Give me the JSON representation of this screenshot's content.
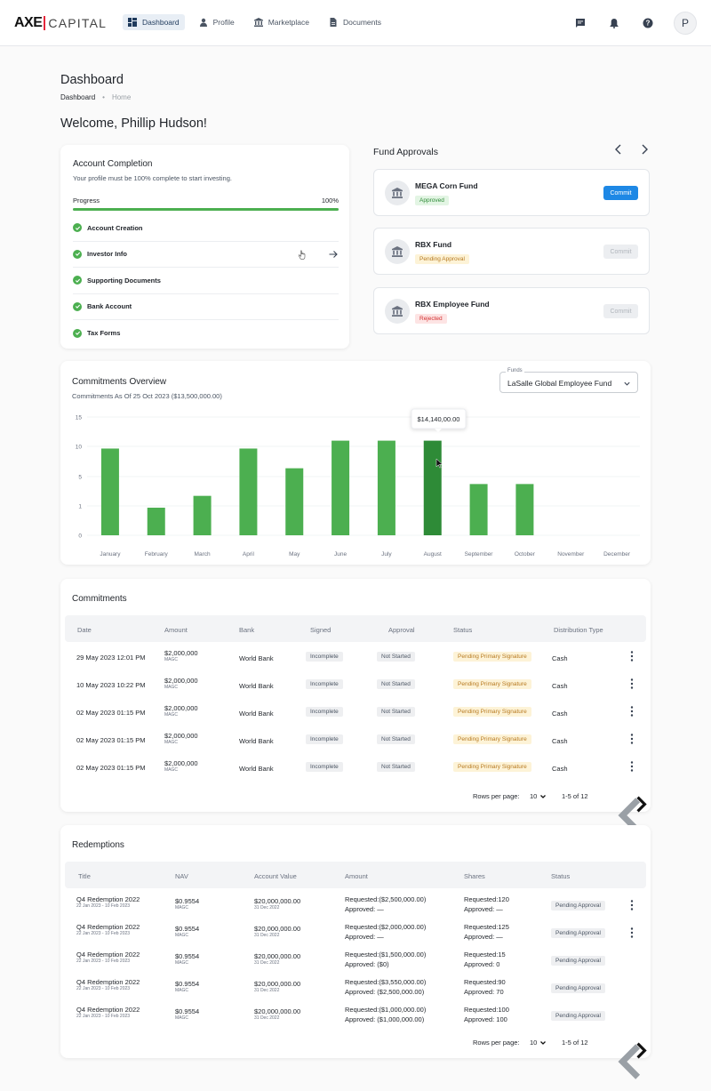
{
  "brand": {
    "axe": "AXE",
    "capital": "CAPITAL"
  },
  "nav": [
    {
      "label": "Dashboard",
      "icon": "dashboard-icon",
      "active": true
    },
    {
      "label": "Profile",
      "icon": "person-icon"
    },
    {
      "label": "Marketplace",
      "icon": "bank-icon"
    },
    {
      "label": "Documents",
      "icon": "document-icon"
    }
  ],
  "user_initial": "P",
  "page": {
    "title": "Dashboard",
    "breadcrumb": [
      "Dashboard",
      "Home"
    ],
    "welcome": "Welcome, Phillip Hudson!"
  },
  "account": {
    "title": "Account Completion",
    "subtitle": "Your profile must be 100% complete to start investing.",
    "progress_label": "Progress",
    "progress_value": "100%",
    "progress_fraction": 1.0,
    "steps": [
      "Account Creation",
      "Investor Info",
      "Supporting Documents",
      "Bank Account",
      "Tax Forms"
    ]
  },
  "fund_approvals": {
    "title": "Fund Approvals",
    "items": [
      {
        "name": "MEGA Corn Fund",
        "status": "Approved",
        "button": "Commit"
      },
      {
        "name": "RBX Fund",
        "status": "Pending Approval",
        "button": "Commit"
      },
      {
        "name": "RBX Employee Fund",
        "status": "Rejected",
        "button": "Commit"
      }
    ]
  },
  "overview": {
    "title": "Commitments Overview",
    "subtitle": "Commitments As Of 25 Oct 2023 ($13,500,000.00)",
    "select_label": "Funds",
    "select_value": "LaSalle Global Employee Fund",
    "tooltip": "$14,140,00.00"
  },
  "chart_data": {
    "type": "bar",
    "categories": [
      "January",
      "February",
      "March",
      "April",
      "May",
      "June",
      "July",
      "August",
      "September",
      "October",
      "November",
      "December"
    ],
    "values": [
      11,
      3.5,
      5,
      11,
      8.5,
      12,
      12,
      12,
      6.5,
      6.5,
      0,
      0
    ],
    "y_ticks": [
      "15",
      "10",
      "5",
      "1",
      "0"
    ],
    "highlight_index": 7,
    "colors": {
      "bar": "#4caf50",
      "highlight": "#2e8b37"
    }
  },
  "commitments": {
    "title": "Commitments",
    "headers": [
      "Date",
      "Amount",
      "Bank",
      "Signed",
      "Approval",
      "Status",
      "Distribution Type"
    ],
    "rows": [
      {
        "date": "29 May 2023 12:01 PM",
        "amount": "$2,000,000",
        "unit": "MAGC",
        "bank": "World Bank",
        "signed": "Incomplete",
        "approval": "Not Started",
        "status": "Pending Primary Signature",
        "dist": "Cash"
      },
      {
        "date": "10 May 2023 10:22 PM",
        "amount": "$2,000,000",
        "unit": "MAGC",
        "bank": "World Bank",
        "signed": "Incomplete",
        "approval": "Not Started",
        "status": "Pending Primary Signature",
        "dist": "Cash"
      },
      {
        "date": "02 May 2023 01:15 PM",
        "amount": "$2,000,000",
        "unit": "MAGC",
        "bank": "World Bank",
        "signed": "Incomplete",
        "approval": "Not Started",
        "status": "Pending Primary Signature",
        "dist": "Cash"
      },
      {
        "date": "02 May 2023 01:15 PM",
        "amount": "$2,000,000",
        "unit": "MAGC",
        "bank": "World Bank",
        "signed": "Incomplete",
        "approval": "Not Started",
        "status": "Pending Primary Signature",
        "dist": "Cash"
      },
      {
        "date": "02 May 2023 01:15 PM",
        "amount": "$2,000,000",
        "unit": "MAGC",
        "bank": "World Bank",
        "signed": "Incomplete",
        "approval": "Not Started",
        "status": "Pending Primary Signature",
        "dist": "Cash"
      }
    ],
    "rows_per_page_label": "Rows per page:",
    "rows_per_page": "10",
    "range": "1-5 of 12"
  },
  "redemptions": {
    "title": "Redemptions",
    "headers": [
      "Title",
      "NAV",
      "Account Value",
      "Amount",
      "Shares",
      "Status"
    ],
    "rows": [
      {
        "title": "Q4 Redemption 2022",
        "dates": "22 Jan 2023 - 10 Feb 2023",
        "nav": "$0.9554",
        "unit": "MAGC",
        "value": "$20,000,000.00",
        "value_date": "31 Dec 2022",
        "req": "Requested:($2,500,000.00)",
        "appr": "Approved:  —",
        "sreq": "Requested:120",
        "sappr": "Approved:  —",
        "status": "Pending Approval",
        "menu": true
      },
      {
        "title": "Q4 Redemption 2022",
        "dates": "22 Jan 2023 - 10 Feb 2023",
        "nav": "$0.9554",
        "unit": "MAGC",
        "value": "$20,000,000.00",
        "value_date": "31 Dec 2022",
        "req": "Requested:($2,000,000.00)",
        "appr": "Approved:  —",
        "sreq": "Requested:125",
        "sappr": "Approved:  —",
        "status": "Pending Approval",
        "menu": true
      },
      {
        "title": "Q4 Redemption 2022",
        "dates": "22 Jan 2023 - 10 Feb 2023",
        "nav": "$0.9554",
        "unit": "MAGC",
        "value": "$20,000,000.00",
        "value_date": "31 Dec 2022",
        "req": "Requested:($1,500,000.00)",
        "appr": "Approved:   ($0)",
        "sreq": "Requested:15",
        "sappr": "Approved:   0",
        "status": "Pending Approval",
        "menu": false
      },
      {
        "title": "Q4 Redemption 2022",
        "dates": "22 Jan 2023 - 10 Feb 2023",
        "nav": "$0.9554",
        "unit": "MAGC",
        "value": "$20,000,000.00",
        "value_date": "31 Dec 2022",
        "req": "Requested:($3,550,000.00)",
        "appr": "Approved:   ($2,500,000.00)",
        "sreq": "Requested:90",
        "sappr": "Approved:   70",
        "status": "Pending Approval",
        "menu": false
      },
      {
        "title": "Q4 Redemption 2022",
        "dates": "22 Jan 2023 - 10 Feb 2023",
        "nav": "$0.9554",
        "unit": "MAGC",
        "value": "$20,000,000.00",
        "value_date": "31 Dec 2022",
        "req": "Requested:($1,000,000.00)",
        "appr": "Approved:   ($1,000,000.00)",
        "sreq": "Requested:100",
        "sappr": "Approved:   100",
        "status": "Pending Approval",
        "menu": false
      }
    ],
    "rows_per_page_label": "Rows per page:",
    "rows_per_page": "10",
    "range": "1-5 of 12"
  }
}
